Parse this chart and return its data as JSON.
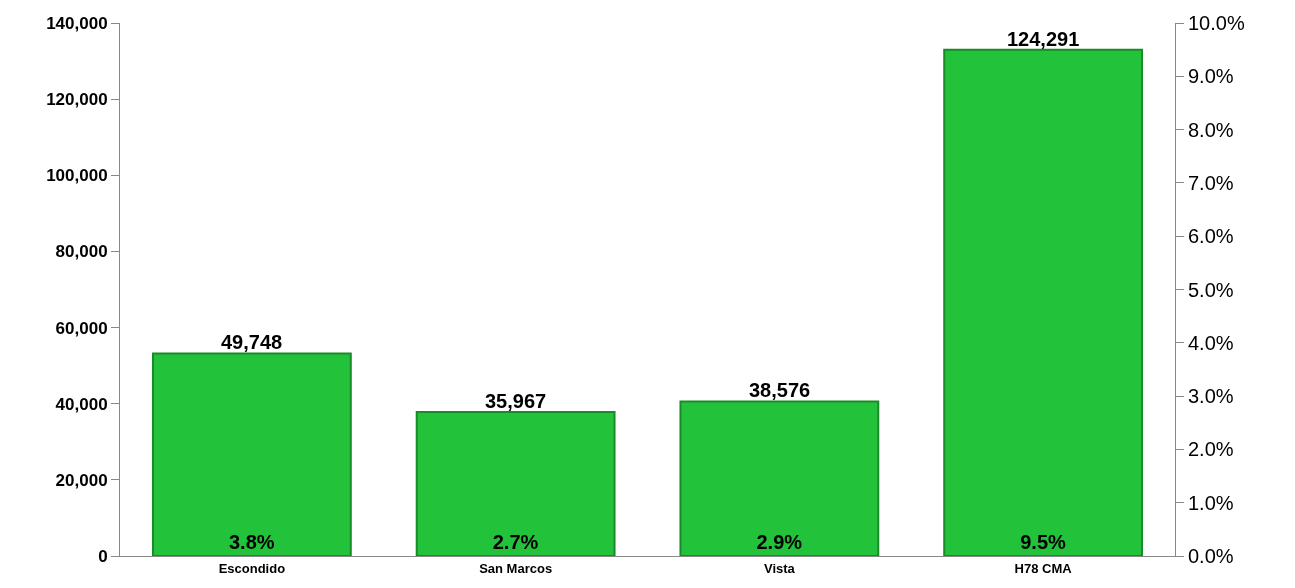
{
  "chart_data": {
    "type": "bar",
    "categories": [
      "Escondido",
      "San Marcos",
      "Vista",
      "H78 CMA"
    ],
    "series": [
      {
        "color": "#22c33a",
        "values": [
          3.8,
          2.7,
          2.9,
          9.5
        ],
        "axis": "y2",
        "value_labels": [
          "3.8%",
          "2.7%",
          "2.9%",
          "9.5%"
        ]
      }
    ],
    "annotations": [
      "49,748",
      "35,967",
      "38,576",
      "124,291"
    ],
    "ylim": [
      0,
      140000
    ],
    "yticks": [
      {
        "value": 0,
        "label": "0"
      },
      {
        "value": 20000,
        "label": "20,000"
      },
      {
        "value": 40000,
        "label": "40,000"
      },
      {
        "value": 60000,
        "label": "60,000"
      },
      {
        "value": 80000,
        "label": "80,000"
      },
      {
        "value": 100000,
        "label": "100,000"
      },
      {
        "value": 120000,
        "label": "120,000"
      },
      {
        "value": 140000,
        "label": "140,000"
      }
    ],
    "y2lim": [
      0,
      10
    ],
    "y2ticks": [
      {
        "value": 0,
        "label": "0.0%"
      },
      {
        "value": 1,
        "label": "1.0%"
      },
      {
        "value": 2,
        "label": "2.0%"
      },
      {
        "value": 3,
        "label": "3.0%"
      },
      {
        "value": 4,
        "label": "4.0%"
      },
      {
        "value": 5,
        "label": "5.0%"
      },
      {
        "value": 6,
        "label": "6.0%"
      },
      {
        "value": 7,
        "label": "7.0%"
      },
      {
        "value": 8,
        "label": "8.0%"
      },
      {
        "value": 9,
        "label": "9.0%"
      },
      {
        "value": 10,
        "label": "10.0%"
      }
    ],
    "legend": false
  }
}
